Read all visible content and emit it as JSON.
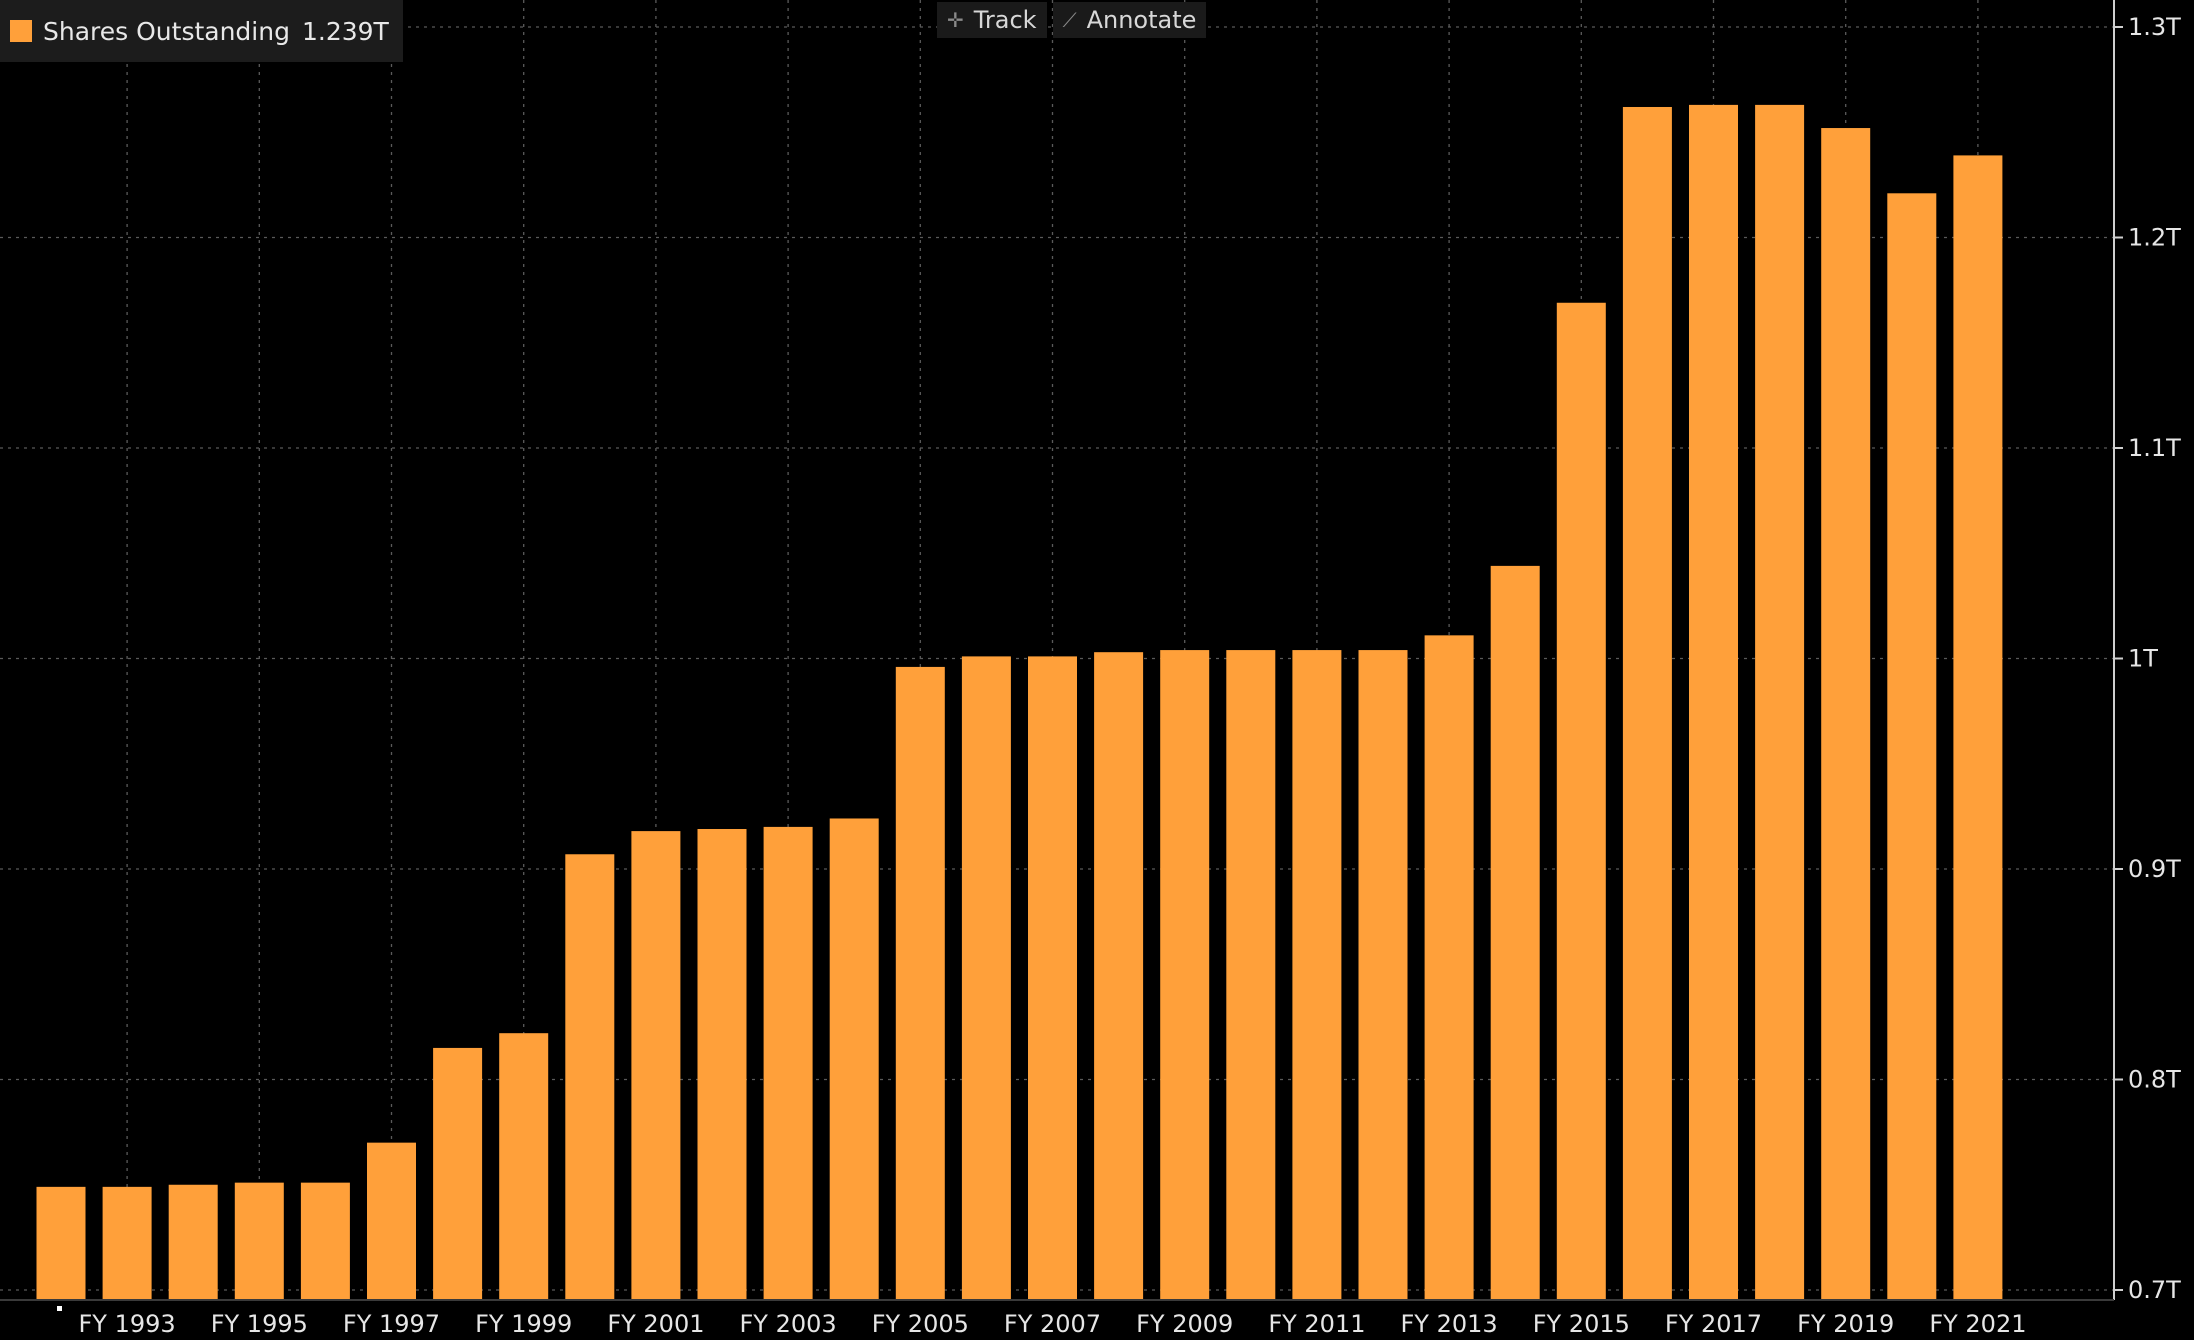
{
  "legend": {
    "series_name": "Shares Outstanding",
    "last_value": "1.239T",
    "color": "#ffa03a"
  },
  "toolbar": {
    "track_label": "Track",
    "track_icon": "crosshair-icon",
    "annotate_label": "Annotate",
    "annotate_icon": "pencil-icon"
  },
  "chart_data": {
    "type": "bar",
    "title": "",
    "xlabel": "",
    "ylabel": "",
    "categories": [
      "FY 1992",
      "FY 1993",
      "FY 1994",
      "FY 1995",
      "FY 1996",
      "FY 1997",
      "FY 1998",
      "FY 1999",
      "FY 2000",
      "FY 2001",
      "FY 2002",
      "FY 2003",
      "FY 2004",
      "FY 2005",
      "FY 2006",
      "FY 2007",
      "FY 2008",
      "FY 2009",
      "FY 2010",
      "FY 2011",
      "FY 2012",
      "FY 2013",
      "FY 2014",
      "FY 2015",
      "FY 2016",
      "FY 2017",
      "FY 2018",
      "FY 2019",
      "FY 2020",
      "FY 2021"
    ],
    "x_tick_labels": [
      "FY 1993",
      "FY 1995",
      "FY 1997",
      "FY 1999",
      "FY 2001",
      "FY 2003",
      "FY 2005",
      "FY 2007",
      "FY 2009",
      "FY 2011",
      "FY 2013",
      "FY 2015",
      "FY 2017",
      "FY 2019",
      "FY 2021"
    ],
    "series": [
      {
        "name": "Shares Outstanding",
        "color": "#ffa03a",
        "values": [
          0.749,
          0.749,
          0.75,
          0.751,
          0.751,
          0.77,
          0.815,
          0.822,
          0.907,
          0.918,
          0.919,
          0.92,
          0.924,
          0.996,
          1.001,
          1.001,
          1.003,
          1.004,
          1.004,
          1.004,
          1.004,
          1.011,
          1.044,
          1.169,
          1.262,
          1.263,
          1.263,
          1.252,
          1.221,
          1.239
        ]
      }
    ],
    "ylim": [
      0.7,
      1.3
    ],
    "y_ticks": [
      0.7,
      0.8,
      0.9,
      1.0,
      1.1,
      1.2,
      1.3
    ],
    "y_tick_labels": [
      "0.7T",
      "0.8T",
      "0.9T",
      "1T",
      "1.1T",
      "1.2T",
      "1.3T"
    ],
    "y_axis_position": "right",
    "grid": true,
    "legend_position": "top-left",
    "background": "#000000",
    "grid_color": "#5a5a5a",
    "axis_color": "#cfcfcf"
  }
}
